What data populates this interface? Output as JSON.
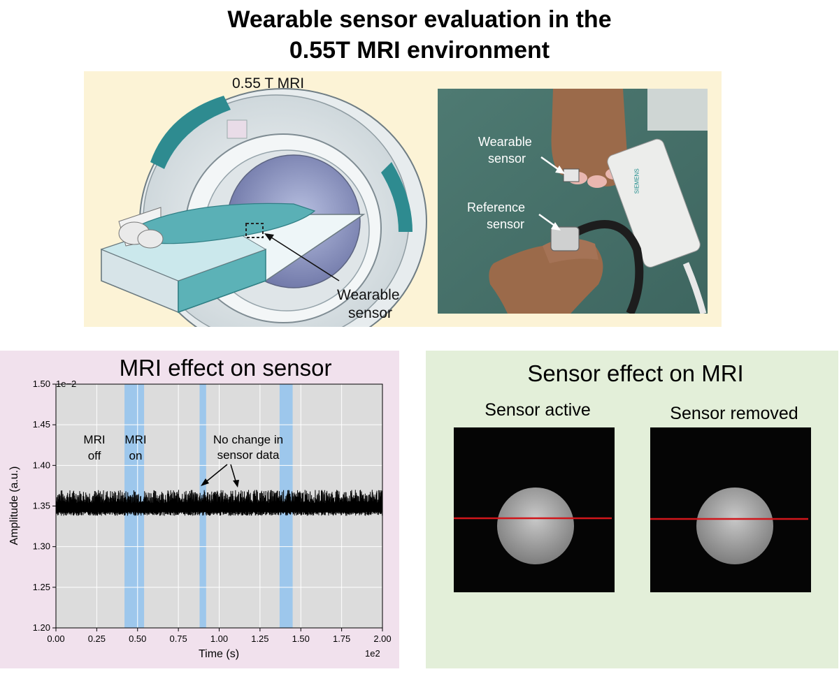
{
  "title": {
    "line1": "Wearable sensor evaluation in the",
    "line2": "0.55T MRI environment"
  },
  "top_panel": {
    "mri_label": "0.55 T MRI",
    "wearable_line1": "Wearable",
    "wearable_line2": "sensor",
    "photo": {
      "wearable_line1": "Wearable",
      "wearable_line2": "sensor",
      "reference_line1": "Reference",
      "reference_line2": "sensor",
      "device_brand": "SIEMENS"
    },
    "colors": {
      "background": "#fcf3d6",
      "scanner_teal": "#2e8b90"
    }
  },
  "sensor_panel": {
    "title": "MRI effect on sensor",
    "background": "#f1e1ed",
    "annotations": {
      "mri_off_1": "MRI",
      "mri_off_2": "off",
      "mri_on_1": "MRI",
      "mri_on_2": "on",
      "no_change_1": "No change in",
      "no_change_2": "sensor data"
    }
  },
  "chart_data": {
    "type": "line",
    "title": "",
    "xlabel": "Time (s)",
    "ylabel": "Amplitude (a.u.)",
    "x_scale_label": "1e2",
    "y_scale_label": "1e−2",
    "xlim": [
      0,
      2.0
    ],
    "ylim": [
      1.2,
      1.5
    ],
    "x_ticks": [
      "0.00",
      "0.25",
      "0.50",
      "0.75",
      "1.00",
      "1.25",
      "1.50",
      "1.75",
      "2.00"
    ],
    "y_ticks": [
      "1.20",
      "1.25",
      "1.30",
      "1.35",
      "1.40",
      "1.45",
      "1.50"
    ],
    "grid": true,
    "series_band": {
      "baseline": 1.345,
      "upper": 1.37,
      "lower": 1.338
    },
    "mri_on_intervals": [
      [
        0.42,
        0.54
      ],
      [
        0.88,
        0.92
      ],
      [
        1.37,
        1.45
      ]
    ],
    "colors": {
      "signal": "#000000",
      "mri_on": "#9dc7ec",
      "plot_bg": "#dcdcdc"
    }
  },
  "mri_panel": {
    "title": "Sensor effect on MRI",
    "background": "#e3efd9",
    "sensor_active": "Sensor active",
    "sensor_removed": "Sensor removed",
    "colors": {
      "profile_line": "#d0161b"
    }
  }
}
